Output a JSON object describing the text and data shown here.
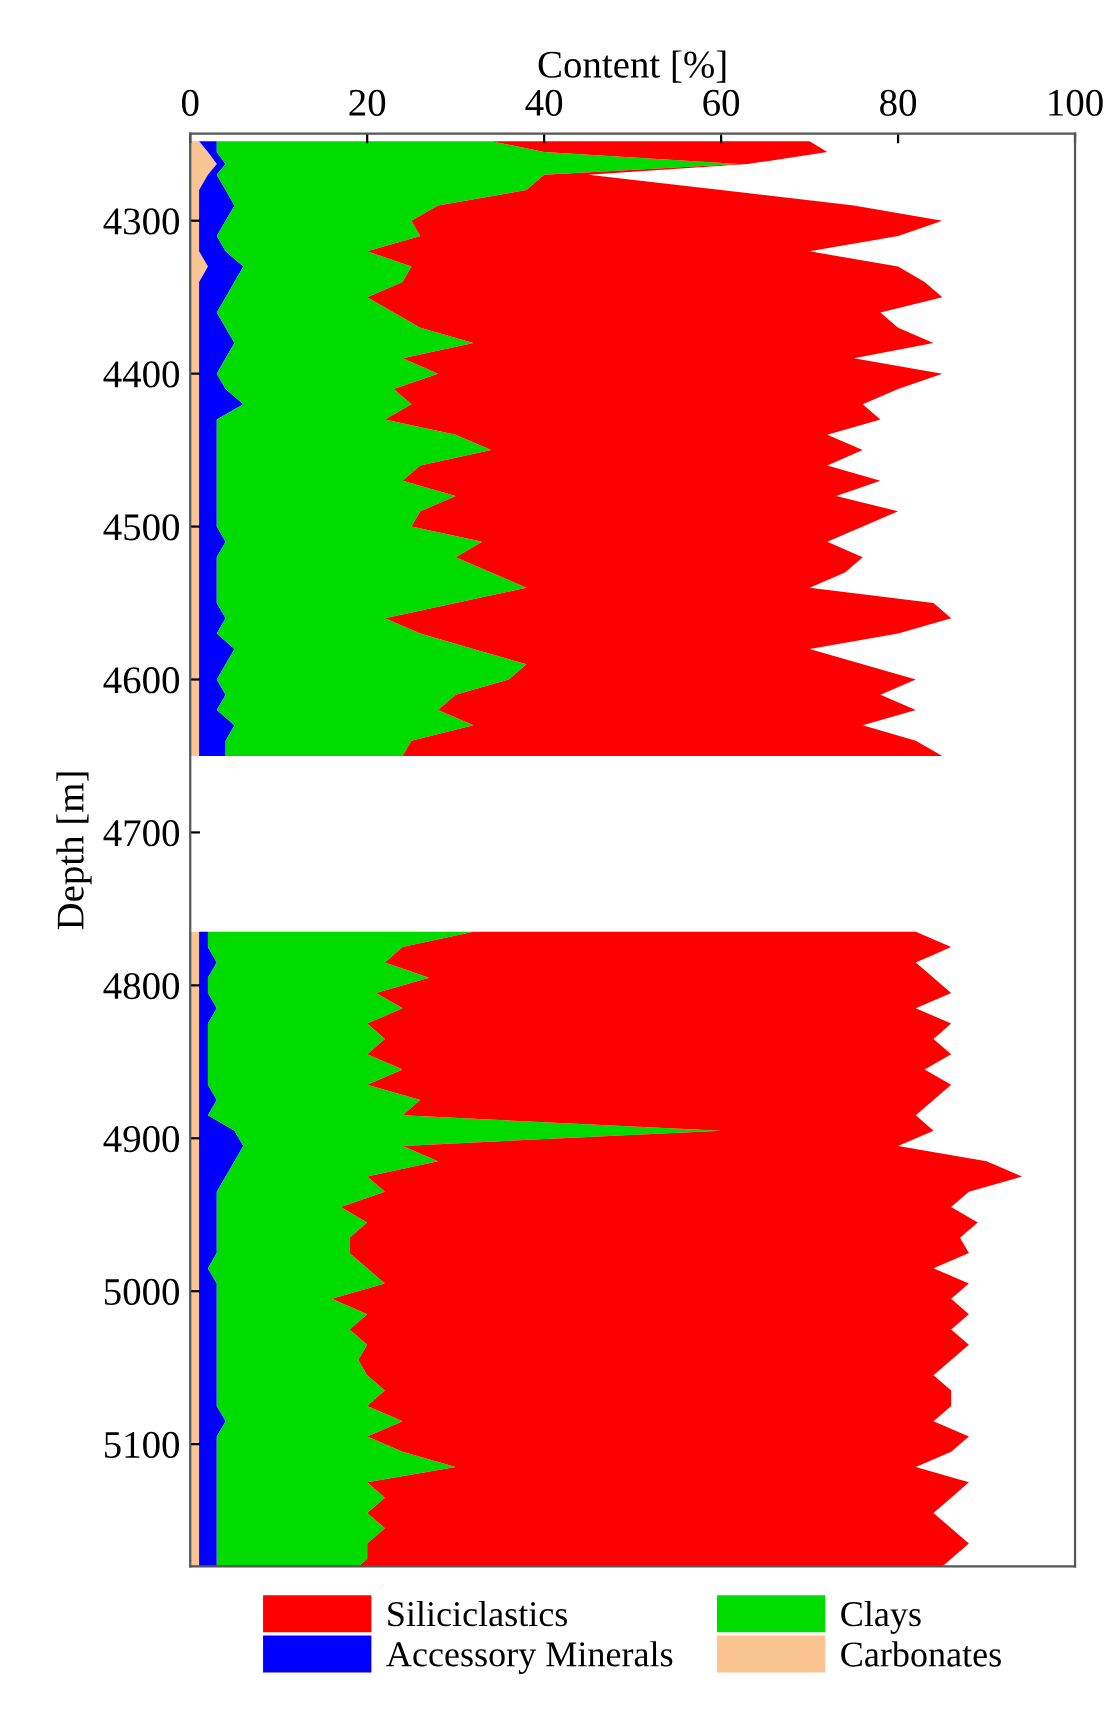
{
  "chart_data": {
    "type": "area",
    "orientation": "horizontal",
    "stacked": true,
    "xlabel": "Content [%]",
    "ylabel": "Depth [m]",
    "xlim": [
      0,
      100
    ],
    "xticks": [
      0,
      20,
      40,
      60,
      80,
      100
    ],
    "ylim": [
      5180,
      4243
    ],
    "yticks": [
      4300,
      4400,
      4500,
      4600,
      4700,
      4800,
      4900,
      5000,
      5100
    ],
    "grid": false,
    "legend": "bottom",
    "x": [
      4248,
      4255,
      4263,
      4270,
      4280,
      4290,
      4300,
      4310,
      4320,
      4330,
      4340,
      4350,
      4360,
      4370,
      4380,
      4390,
      4400,
      4410,
      4420,
      4430,
      4440,
      4450,
      4460,
      4470,
      4480,
      4490,
      4500,
      4510,
      4520,
      4530,
      4540,
      4550,
      4560,
      4570,
      4580,
      4590,
      4600,
      4610,
      4620,
      4630,
      4640,
      4650,
      4700,
      4765,
      4775,
      4785,
      4795,
      4805,
      4815,
      4825,
      4835,
      4845,
      4855,
      4865,
      4875,
      4885,
      4895,
      4905,
      4915,
      4925,
      4935,
      4945,
      4955,
      4965,
      4975,
      4985,
      4995,
      5005,
      5015,
      5025,
      5035,
      5045,
      5055,
      5065,
      5075,
      5085,
      5095,
      5105,
      5115,
      5125,
      5135,
      5145,
      5155,
      5165,
      5175,
      5180
    ],
    "series": [
      {
        "name": "Carbonates",
        "color": "#fbc593",
        "values": [
          1,
          2,
          3,
          2,
          1,
          1,
          1,
          1,
          1,
          2,
          1,
          1,
          1,
          1,
          1,
          1,
          1,
          1,
          1,
          1,
          1,
          1,
          1,
          1,
          1,
          1,
          1,
          1,
          1,
          1,
          1,
          1,
          1,
          1,
          1,
          1,
          1,
          1,
          1,
          1,
          1,
          1,
          null,
          1,
          1,
          1,
          1,
          1,
          1,
          1,
          1,
          1,
          1,
          1,
          1,
          1,
          1,
          1,
          1,
          1,
          1,
          1,
          1,
          1,
          1,
          1,
          1,
          1,
          1,
          1,
          1,
          1,
          1,
          1,
          1,
          1,
          1,
          1,
          1,
          1,
          1,
          1,
          1,
          1,
          1,
          1
        ]
      },
      {
        "name": "Accessory Minerals",
        "color": "#0000ff",
        "values": [
          2,
          1,
          1,
          1,
          3,
          4,
          3,
          2,
          3,
          4,
          4,
          3,
          2,
          3,
          4,
          3,
          2,
          3,
          5,
          2,
          2,
          2,
          2,
          2,
          2,
          2,
          2,
          3,
          2,
          2,
          2,
          2,
          3,
          2,
          4,
          3,
          2,
          3,
          2,
          4,
          3,
          3,
          null,
          1,
          1,
          2,
          1,
          1,
          2,
          1,
          1,
          1,
          1,
          1,
          2,
          1,
          4,
          5,
          4,
          3,
          2,
          2,
          2,
          2,
          2,
          1,
          2,
          2,
          2,
          2,
          2,
          2,
          2,
          2,
          2,
          3,
          2,
          2,
          2,
          2,
          2,
          2,
          2,
          2,
          2,
          2
        ]
      },
      {
        "name": "Clays",
        "color": "#00dc00",
        "values": [
          31,
          37,
          58,
          37,
          34,
          23,
          21,
          23,
          16,
          19,
          19,
          16,
          20,
          22,
          27,
          20,
          25,
          19,
          19,
          19,
          27,
          31,
          23,
          21,
          27,
          23,
          22,
          29,
          27,
          31,
          35,
          27,
          18,
          23,
          27,
          34,
          33,
          26,
          25,
          27,
          21,
          20,
          null,
          30,
          22,
          19,
          25,
          19,
          21,
          18,
          20,
          18,
          22,
          18,
          23,
          22,
          55,
          18,
          23,
          16,
          19,
          14,
          17,
          15,
          15,
          18,
          19,
          13,
          17,
          15,
          17,
          16,
          17,
          19,
          17,
          20,
          17,
          21,
          27,
          17,
          19,
          17,
          19,
          17,
          17,
          16
        ]
      },
      {
        "name": "Siliciclastics",
        "color": "#ff0000",
        "values": [
          36,
          32,
          1,
          5,
          22,
          47,
          60,
          54,
          50,
          55,
          59,
          65,
          55,
          54,
          52,
          51,
          57,
          57,
          51,
          56,
          42,
          42,
          46,
          54,
          43,
          54,
          51,
          39,
          46,
          40,
          32,
          54,
          64,
          54,
          38,
          38,
          46,
          48,
          54,
          44,
          57,
          61,
          null,
          50,
          62,
          60,
          57,
          65,
          58,
          66,
          62,
          66,
          59,
          66,
          58,
          58,
          24,
          56,
          62,
          74,
          66,
          69,
          69,
          69,
          70,
          64,
          66,
          70,
          68,
          68,
          68,
          67,
          64,
          64,
          66,
          60,
          68,
          62,
          52,
          68,
          64,
          64,
          64,
          68,
          66,
          66
        ]
      }
    ]
  }
}
